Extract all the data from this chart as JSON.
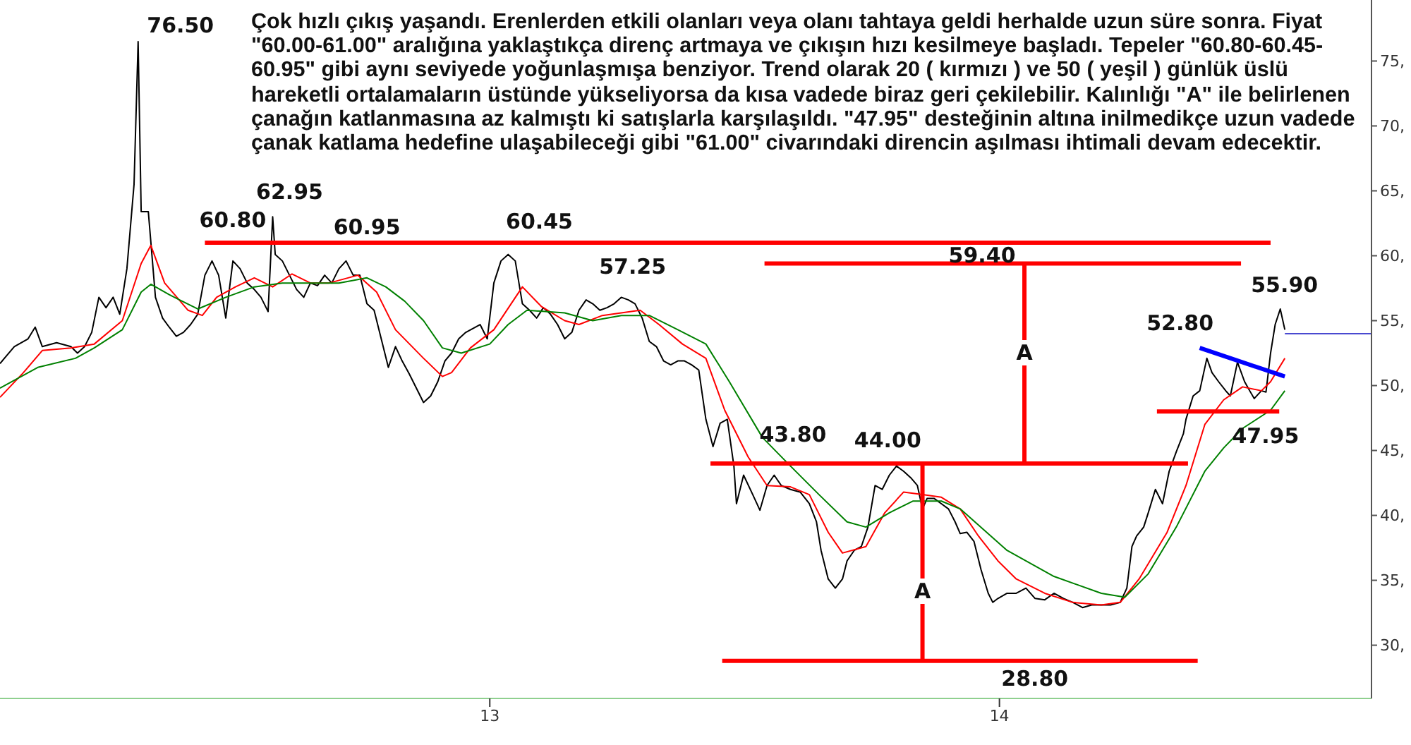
{
  "chart_data": {
    "type": "line",
    "annotations": [
      "Çok hızlı çıkış yaşandı. Erenlerden etkili olanları veya olanı tahtaya geldi herhalde uzun süre sonra. Fiyat\n\"60.00-61.00\" aralığına yaklaştıkça direnç artmaya ve çıkışın hızı kesilmeye başladı. Tepeler \"60.80-60.45-\n60.95\" gibi aynı seviyede yoğunlaşmışa benziyor. Trend olarak 20 ( kırmızı ) ve 50 ( yeşil ) günlük üslü\nhareketli ortalamaların üstünde yükseliyorsa da kısa vadede biraz geri çekilebilir. Kalınlığı \"A\" ile belirlenen\nçanağın katlanmasına az kalmıştı ki satışlarla karşılaşıldı. \"47.95\" desteğinin altına inilmedikçe uzun vadede\nçanak katlama hedefine ulaşabileceği gibi \"61.00\" civarındaki direncin aşılması ihtimali devam edecektir.",
      {
        "text": "76.50",
        "x": 2012.31,
        "y": 76.5
      },
      {
        "text": "62.95",
        "x": 2012.574,
        "y": 62.95
      },
      {
        "text": "60.80",
        "x": 2012.468,
        "y": 60.8
      },
      {
        "text": "60.95",
        "x": 2012.723,
        "y": 60.95
      },
      {
        "text": "60.45",
        "x": 2013.053,
        "y": 60.45
      },
      {
        "text": "57.25",
        "x": 2013.258,
        "y": 57.25
      },
      {
        "text": "59.40",
        "x": 2013.966,
        "y": 59.4
      },
      {
        "text": "43.80",
        "x": 2013.581,
        "y": 43.8
      },
      {
        "text": "44.00",
        "x": 2013.803,
        "y": 44
      },
      {
        "text": "28.80",
        "x": 2013.978,
        "y": 28.8
      },
      {
        "text": "52.80",
        "x": 2014.407,
        "y": 52.8
      },
      {
        "text": "55.90",
        "x": 2014.551,
        "y": 55.9
      },
      {
        "text": "47.95",
        "x": 2014.5,
        "y": 48
      },
      {
        "text": "A",
        "x": 2014.049,
        "y": 52.5
      },
      {
        "text": "A",
        "x": 2013.849,
        "y": 34.2
      }
    ],
    "xlim": [
      2012.039,
      2014.73
    ],
    "xticks": [
      {
        "value": 2013,
        "label": "13"
      },
      {
        "value": 2014,
        "label": "14"
      }
    ],
    "ylim": [
      25.9,
      79.7
    ],
    "yticks": [
      {
        "value": 30,
        "label": "30,"
      },
      {
        "value": 35,
        "label": "35,"
      },
      {
        "value": 40,
        "label": "40,"
      },
      {
        "value": 45,
        "label": "45,"
      },
      {
        "value": 50,
        "label": "50,"
      },
      {
        "value": 55,
        "label": "55,"
      },
      {
        "value": 60,
        "label": "60,"
      },
      {
        "value": 65,
        "label": "65,"
      },
      {
        "value": 70,
        "label": "70,"
      },
      {
        "value": 75,
        "label": "75,"
      }
    ],
    "grid": false,
    "series": [
      {
        "color": "#000000",
        "x": [
          2012.039,
          2012.067,
          2012.094,
          2012.108,
          2012.122,
          2012.15,
          2012.178,
          2012.191,
          2012.205,
          2012.219,
          2012.233,
          2012.247,
          2012.261,
          2012.274,
          2012.288,
          2012.302,
          2012.31,
          2012.316,
          2012.33,
          2012.344,
          2012.358,
          2012.371,
          2012.385,
          2012.399,
          2012.413,
          2012.427,
          2012.441,
          2012.455,
          2012.468,
          2012.482,
          2012.496,
          2012.51,
          2012.524,
          2012.538,
          2012.551,
          2012.565,
          2012.574,
          2012.579,
          2012.593,
          2012.607,
          2012.621,
          2012.635,
          2012.648,
          2012.662,
          2012.676,
          2012.69,
          2012.704,
          2012.718,
          2012.732,
          2012.745,
          2012.759,
          2012.773,
          2012.787,
          2012.801,
          2012.815,
          2012.828,
          2012.842,
          2012.856,
          2012.87,
          2012.884,
          2012.898,
          2012.912,
          2012.925,
          2012.939,
          2012.953,
          2012.981,
          2012.995,
          2013.008,
          2013.022,
          2013.036,
          2013.05,
          2013.064,
          2013.078,
          2013.092,
          2013.105,
          2013.119,
          2013.133,
          2013.147,
          2013.161,
          2013.175,
          2013.189,
          2013.202,
          2013.216,
          2013.23,
          2013.244,
          2013.258,
          2013.272,
          2013.285,
          2013.299,
          2013.313,
          2013.327,
          2013.341,
          2013.355,
          2013.369,
          2013.382,
          2013.396,
          2013.41,
          2013.424,
          2013.438,
          2013.452,
          2013.466,
          2013.479,
          2013.484,
          2013.498,
          2013.516,
          2013.53,
          2013.544,
          2013.558,
          2013.572,
          2013.59,
          2013.609,
          2013.627,
          2013.641,
          2013.65,
          2013.664,
          2013.678,
          2013.692,
          2013.701,
          2013.715,
          2013.729,
          2013.742,
          2013.756,
          2013.77,
          2013.784,
          2013.798,
          2013.812,
          2013.826,
          2013.839,
          2013.849,
          2013.858,
          2013.872,
          2013.886,
          2013.9,
          2013.913,
          2013.923,
          2013.936,
          2013.95,
          2013.964,
          2013.978,
          2013.987,
          2013.997,
          2014.015,
          2014.033,
          2014.052,
          2014.07,
          2014.089,
          2014.107,
          2014.126,
          2014.144,
          2014.163,
          2014.181,
          2014.2,
          2014.218,
          2014.237,
          2014.25,
          2014.26,
          2014.269,
          2014.283,
          2014.292,
          2014.306,
          2014.32,
          2014.333,
          2014.347,
          2014.361,
          2014.366,
          2014.38,
          2014.393,
          2014.407,
          2014.417,
          2014.43,
          2014.444,
          2014.453,
          2014.467,
          2014.481,
          2014.491,
          2014.5,
          2014.514,
          2014.523,
          2014.532,
          2014.541,
          2014.551,
          2014.56
        ],
        "values": [
          51.7,
          53,
          53.6,
          54.5,
          53,
          53.3,
          53,
          52.5,
          53,
          54.1,
          56.8,
          56,
          56.8,
          55.5,
          59,
          65.5,
          76.5,
          63.4,
          63.4,
          56.8,
          55.2,
          54.5,
          53.8,
          54.1,
          54.7,
          55.5,
          58.5,
          59.6,
          58.5,
          55.2,
          59.6,
          59,
          57.9,
          57.4,
          56.8,
          55.7,
          63,
          60.1,
          59.6,
          58.5,
          57.4,
          56.8,
          57.9,
          57.7,
          58.5,
          57.9,
          59,
          59.6,
          58.5,
          58.5,
          56.3,
          55.8,
          53.6,
          51.4,
          53,
          51.9,
          50.9,
          49.8,
          48.7,
          49.2,
          50.3,
          51.9,
          52.5,
          53.6,
          54.1,
          54.7,
          53.6,
          57.9,
          59.6,
          60.1,
          59.6,
          56.3,
          55.8,
          55.2,
          56,
          55.5,
          54.7,
          53.6,
          54.1,
          55.8,
          56.6,
          56.3,
          55.8,
          56,
          56.3,
          56.8,
          56.6,
          56.3,
          55.2,
          53.4,
          53,
          51.9,
          51.6,
          51.9,
          51.9,
          51.6,
          51.2,
          47.4,
          45.3,
          47.1,
          47.4,
          43.8,
          40.9,
          43.1,
          41.6,
          40.4,
          42.3,
          43.1,
          42.3,
          42,
          41.8,
          40.9,
          39.5,
          37.3,
          35.1,
          34.4,
          35.1,
          36.5,
          37.3,
          37.6,
          39.1,
          42.3,
          42,
          43.1,
          43.8,
          43.4,
          42.9,
          42.3,
          40.5,
          41.3,
          41.3,
          40.9,
          40.5,
          39.5,
          38.6,
          38.7,
          38,
          35.8,
          34,
          33.3,
          33.6,
          34,
          34,
          34.4,
          33.6,
          33.5,
          34,
          33.6,
          33.3,
          32.9,
          33.1,
          33.1,
          33.1,
          33.3,
          34.4,
          37.6,
          38.4,
          39.1,
          40.2,
          42,
          40.9,
          43.4,
          44.9,
          46.3,
          47.4,
          49.2,
          49.6,
          52.1,
          51,
          50.3,
          49.6,
          49.2,
          51.8,
          50.3,
          49.6,
          49,
          49.6,
          49.5,
          52.5,
          54.7,
          55.9,
          54.3
        ]
      },
      {
        "color": "#ff0000",
        "x": [
          2012.039,
          2012.085,
          2012.122,
          2012.178,
          2012.224,
          2012.279,
          2012.316,
          2012.335,
          2012.362,
          2012.408,
          2012.436,
          2012.464,
          2012.501,
          2012.538,
          2012.574,
          2012.612,
          2012.648,
          2012.685,
          2012.741,
          2012.778,
          2012.815,
          2012.87,
          2012.907,
          2012.925,
          2012.962,
          2013.008,
          2013.064,
          2013.101,
          2013.147,
          2013.175,
          2013.221,
          2013.295,
          2013.332,
          2013.378,
          2013.424,
          2013.461,
          2013.507,
          2013.544,
          2013.59,
          2013.627,
          2013.664,
          2013.692,
          2013.738,
          2013.775,
          2013.812,
          2013.849,
          2013.886,
          2013.923,
          2013.959,
          2013.997,
          2014.033,
          2014.089,
          2014.144,
          2014.2,
          2014.237,
          2014.274,
          2014.329,
          2014.366,
          2014.403,
          2014.44,
          2014.477,
          2014.514,
          2014.532,
          2014.56
        ],
        "values": [
          49.1,
          51,
          52.7,
          52.9,
          53.2,
          55,
          59.4,
          60.8,
          57.9,
          55.8,
          55.4,
          56.8,
          57.6,
          58.3,
          57.6,
          58.6,
          57.9,
          57.9,
          58.5,
          57.2,
          54.3,
          52.1,
          50.7,
          51,
          52.9,
          54.3,
          57.6,
          56.1,
          55,
          54.7,
          55.4,
          55.8,
          54.7,
          53.2,
          52.1,
          48.1,
          44.5,
          42.3,
          42.2,
          41.6,
          38.7,
          37.1,
          37.6,
          40.2,
          41.8,
          41.6,
          41.4,
          40.5,
          38.4,
          36.5,
          35.1,
          34,
          33.3,
          33.1,
          33.3,
          35.1,
          38.7,
          42.3,
          47,
          48.9,
          49.9,
          49.6,
          50.3,
          52.1
        ]
      },
      {
        "color": "#008000",
        "x": [
          2012.039,
          2012.113,
          2012.187,
          2012.224,
          2012.279,
          2012.316,
          2012.335,
          2012.371,
          2012.427,
          2012.482,
          2012.538,
          2012.593,
          2012.648,
          2012.704,
          2012.759,
          2012.796,
          2012.833,
          2012.87,
          2012.907,
          2012.944,
          2013,
          2013.036,
          2013.073,
          2013.147,
          2013.202,
          2013.258,
          2013.313,
          2013.369,
          2013.424,
          2013.47,
          2013.535,
          2013.59,
          2013.646,
          2013.701,
          2013.738,
          2013.784,
          2013.83,
          2013.886,
          2013.923,
          2014.015,
          2014.107,
          2014.2,
          2014.246,
          2014.292,
          2014.347,
          2014.403,
          2014.44,
          2014.477,
          2014.532,
          2014.56
        ],
        "values": [
          49.8,
          51.4,
          52.1,
          52.9,
          54.3,
          57.2,
          57.8,
          57,
          55.9,
          56.8,
          57.6,
          57.9,
          57.9,
          57.9,
          58.3,
          57.6,
          56.5,
          55,
          52.9,
          52.5,
          53.2,
          54.7,
          55.8,
          55.6,
          55,
          55.4,
          55.4,
          54.3,
          53.2,
          50.3,
          46,
          43.8,
          41.6,
          39.5,
          39.1,
          40.2,
          41.1,
          41.1,
          40.5,
          37.3,
          35.3,
          34,
          33.7,
          35.5,
          39.1,
          43.4,
          45.2,
          46.7,
          48.1,
          49.6
        ]
      },
      {
        "color": "#ff0000",
        "x": [
          2012.441,
          2014.532
        ],
        "values": [
          61,
          61
        ]
      },
      {
        "color": "#ff0000",
        "x": [
          2013.539,
          2014.474
        ],
        "values": [
          59.4,
          59.4
        ]
      },
      {
        "color": "#ff0000",
        "x": [
          2013.433,
          2014.37
        ],
        "values": [
          44,
          44
        ]
      },
      {
        "color": "#ff0000",
        "x": [
          2013.456,
          2014.389
        ],
        "values": [
          28.8,
          28.8
        ]
      },
      {
        "color": "#ff0000",
        "x": [
          2014.309,
          2014.549
        ],
        "values": [
          48,
          48
        ]
      },
      {
        "color": "#ff0000",
        "x": [
          2014.049,
          2014.049
        ],
        "values": [
          44,
          59.4
        ]
      },
      {
        "color": "#ff0000",
        "x": [
          2013.849,
          2013.849
        ],
        "values": [
          28.8,
          44
        ]
      },
      {
        "color": "#0000ff",
        "x": [
          2014.393,
          2014.56
        ],
        "values": [
          52.9,
          50.7
        ]
      },
      {
        "color": "#4a4ad0",
        "x": [
          2014.56,
          2014.73
        ],
        "values": [
          54,
          54
        ]
      }
    ]
  }
}
